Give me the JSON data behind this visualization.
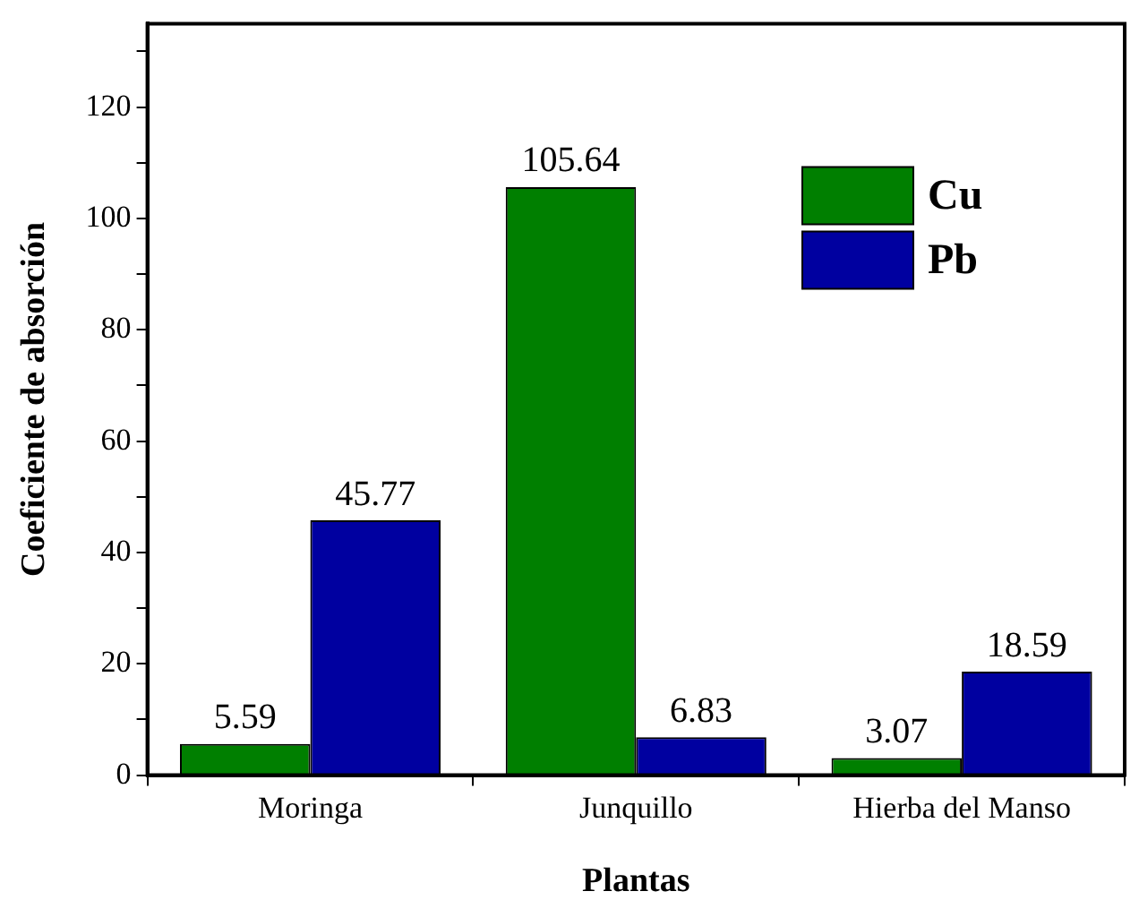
{
  "chart_data": {
    "type": "bar",
    "xlabel": "Plantas",
    "ylabel": "Coeficiente de absorción",
    "categories": [
      "Moringa",
      "Junquillo",
      "Hierba del Manso"
    ],
    "series": [
      {
        "name": "Cu",
        "color": "#007f00",
        "values": [
          5.59,
          105.64,
          3.07
        ]
      },
      {
        "name": "Pb",
        "color": "#0000a0",
        "values": [
          45.77,
          6.83,
          18.59
        ]
      }
    ],
    "ylim": [
      0,
      135
    ],
    "yticks": [
      0,
      {
        "value": 10,
        "label": null
      },
      20,
      {
        "value": 30,
        "label": null
      },
      40,
      {
        "value": 50,
        "label": null
      },
      60,
      {
        "value": 70,
        "label": null
      },
      80,
      {
        "value": 90,
        "label": null
      },
      100,
      {
        "value": 110,
        "label": null
      },
      120,
      {
        "value": 130,
        "label": null
      }
    ],
    "grid": false,
    "legend": "top right",
    "data_labels": true
  }
}
